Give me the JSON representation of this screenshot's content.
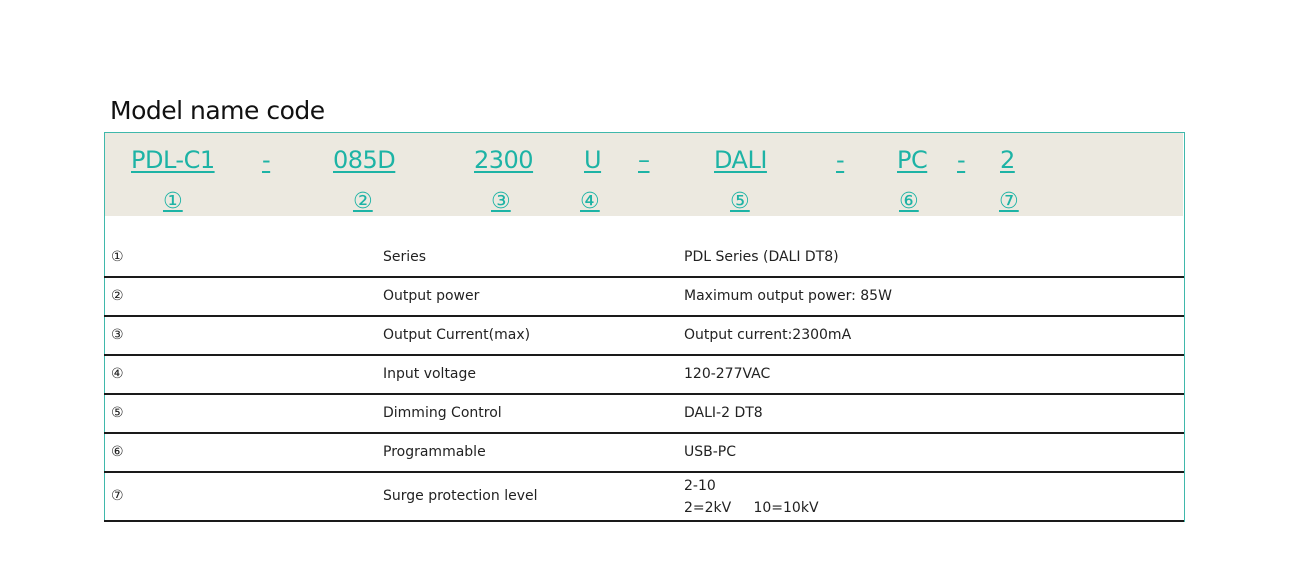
{
  "title": "Model name code",
  "codes": [
    {
      "text": "PDL-C1"
    },
    {
      "text": "-"
    },
    {
      "text": "085D"
    },
    {
      "text": "2300"
    },
    {
      "text": "U"
    },
    {
      "text": "–"
    },
    {
      "text": "DALI"
    },
    {
      "text": "-"
    },
    {
      "text": "PC"
    },
    {
      "text": "-"
    },
    {
      "text": "2"
    }
  ],
  "markers": [
    "①",
    "②",
    "③",
    "④",
    "⑤",
    "⑥",
    "⑦"
  ],
  "rows": [
    {
      "num": "①",
      "label": "Series",
      "value": "PDL Series (DALI DT8)"
    },
    {
      "num": "②",
      "label": "Output power",
      "value": "Maximum output power: 85W"
    },
    {
      "num": "③",
      "label": "Output Current(max)",
      "value": "Output current:2300mA"
    },
    {
      "num": "④",
      "label": "Input voltage",
      "value": "120-277VAC"
    },
    {
      "num": "⑤",
      "label": "Dimming Control",
      "value": "DALI-2 DT8"
    },
    {
      "num": "⑥",
      "label": "Programmable",
      "value": "USB-PC"
    },
    {
      "num": "⑦",
      "label": "Surge protection level",
      "value": "2-10",
      "value2": "2=2kV     10=10kV"
    }
  ],
  "colors": {
    "accent": "#1db3a5",
    "band": "#ece9e0",
    "border": "#3fb8ab"
  }
}
